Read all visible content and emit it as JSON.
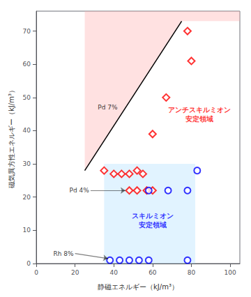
{
  "chart_data": {
    "type": "scatter",
    "xlabel": "静磁エネルギー（kJ/m³）",
    "ylabel": "磁気異方性エネルギー（kJ/m³）",
    "xlim": [
      0,
      105
    ],
    "ylim": [
      0,
      76
    ],
    "xticks": [
      0,
      20,
      40,
      60,
      80,
      100
    ],
    "yticks": [
      0,
      10,
      20,
      30,
      40,
      50,
      60,
      70
    ],
    "grid": false,
    "regions": [
      {
        "vertices": [
          [
            25,
            28
          ],
          [
            75,
            73
          ],
          [
            105,
            73
          ],
          [
            105,
            76
          ],
          [
            25,
            76
          ]
        ],
        "color": "#ffaaaa",
        "label": "アンチスキルミオン\n安定領域",
        "label_x": 84,
        "label_y": 45,
        "label_color": "red"
      },
      {
        "vertices": [
          [
            35,
            0
          ],
          [
            82,
            0
          ],
          [
            82,
            30
          ],
          [
            35,
            30
          ]
        ],
        "color": "#aaddff",
        "label": "スキルミオン\n安定領域",
        "label_x": 60,
        "label_y": 13,
        "label_color": "blue"
      }
    ],
    "series": [
      {
        "type": "line",
        "color": "black",
        "x": [
          25,
          75
        ],
        "y": [
          28,
          73
        ]
      },
      {
        "type": "scatter",
        "marker": "diamond",
        "color": "red",
        "x": [
          35,
          40,
          44,
          48,
          52,
          55
        ],
        "y": [
          28,
          27,
          27,
          27,
          28,
          27
        ]
      },
      {
        "type": "scatter",
        "marker": "diamond",
        "color": "red",
        "x": [
          48,
          52,
          57,
          60
        ],
        "y": [
          22,
          22,
          22,
          22
        ]
      },
      {
        "type": "scatter",
        "marker": "diamond",
        "color": "red",
        "x": [
          60,
          67,
          78,
          80
        ],
        "y": [
          39,
          50,
          70,
          61
        ]
      },
      {
        "type": "scatter",
        "marker": "circle",
        "color": "blue",
        "x": [
          38,
          43,
          48,
          53,
          58,
          78
        ],
        "y": [
          1,
          1,
          1,
          1,
          1,
          1
        ]
      },
      {
        "type": "scatter",
        "marker": "circle",
        "color": "blue",
        "x": [
          58,
          68,
          78,
          83
        ],
        "y": [
          22,
          22,
          22,
          28
        ]
      }
    ],
    "annotations": [
      {
        "text": "Pd 7%",
        "x": 31,
        "y": 47
      },
      {
        "text": "Pd 4%",
        "x": 28,
        "y": 22,
        "arrow_x": 46,
        "arrow_y": 22
      },
      {
        "text": "Rh 8%",
        "x": 20,
        "y": 3,
        "arrow_x": 37,
        "arrow_y": 1.5
      }
    ]
  }
}
